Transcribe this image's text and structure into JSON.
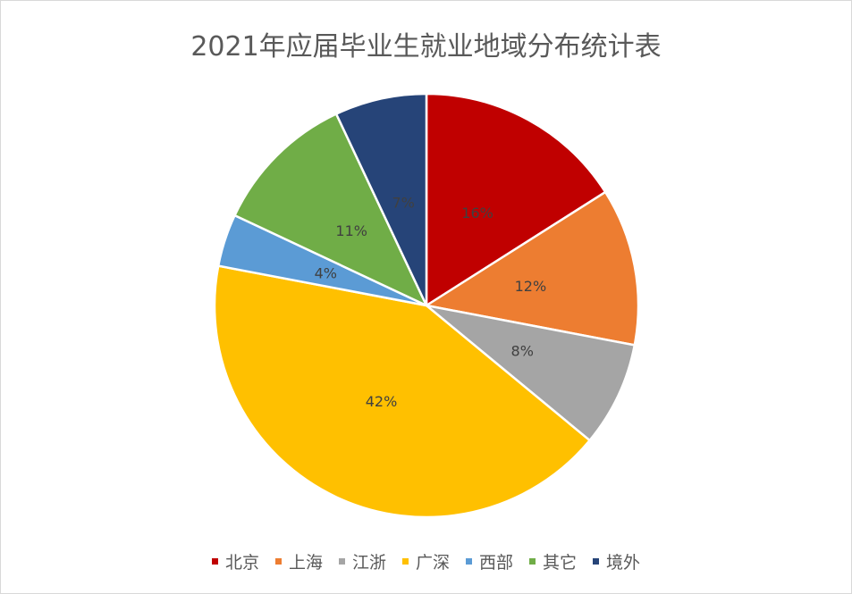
{
  "chart_data": {
    "type": "pie",
    "title": "2021年应届毕业生就业地域分布统计表",
    "categories": [
      "北京",
      "上海",
      "江浙",
      "广深",
      "西部",
      "其它",
      "境外"
    ],
    "values": [
      16,
      12,
      8,
      42,
      4,
      11,
      7
    ],
    "labels": [
      "16%",
      "12%",
      "8%",
      "42%",
      "4%",
      "11%",
      "7%"
    ],
    "colors": [
      "#C00000",
      "#ED7D31",
      "#A5A5A5",
      "#FFC000",
      "#5B9BD5",
      "#70AD47",
      "#264478"
    ],
    "legend_position": "bottom",
    "start": "top",
    "direction": "clockwise"
  }
}
